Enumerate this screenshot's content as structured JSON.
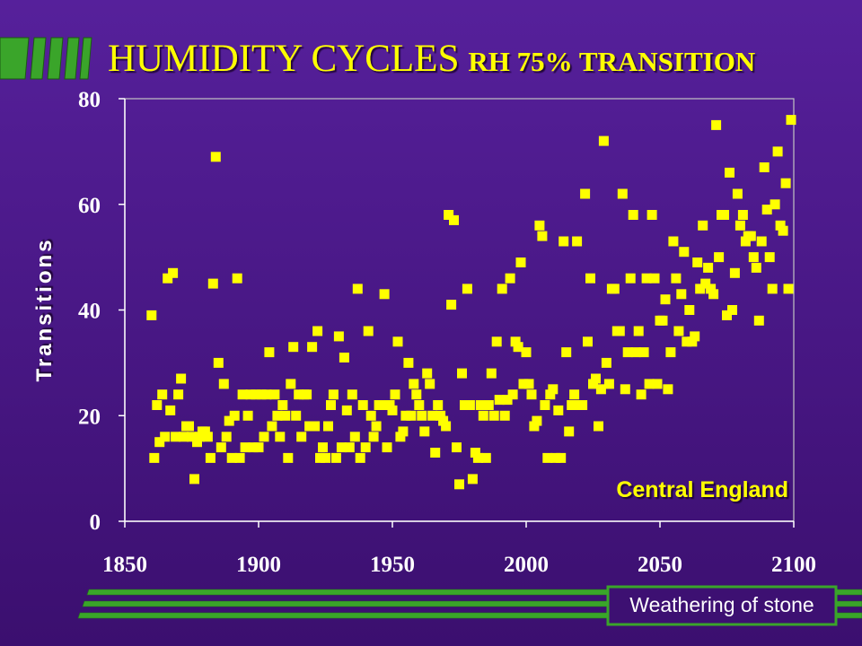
{
  "colors": {
    "background_top": "#56209b",
    "background_bottom": "#3b0f6f",
    "title": "#ffff00",
    "point": "#ffff00",
    "axis_text": "#ffffff",
    "accent_green": "#3aa52a",
    "footer_box_fill": "#3d1072"
  },
  "footer": {
    "label": "Weathering of stone"
  },
  "chart_data": {
    "type": "scatter",
    "title": "HUMIDITY CYCLES",
    "subtitle": "RH 75% TRANSITION",
    "xlabel": "",
    "ylabel": "Transitions",
    "xlim": [
      1850,
      2100
    ],
    "ylim": [
      0,
      80
    ],
    "x_ticks": [
      1850,
      1900,
      1950,
      2000,
      2050,
      2100
    ],
    "y_ticks": [
      0,
      20,
      40,
      60,
      80
    ],
    "grid": false,
    "annotations": [
      {
        "text": "Central England",
        "placement": "bottom-right"
      }
    ],
    "series": [
      {
        "x": [
          1860,
          1861,
          1862,
          1863,
          1864,
          1865,
          1866,
          1867,
          1868,
          1869,
          1870,
          1871,
          1872,
          1873,
          1874,
          1875,
          1876,
          1877,
          1878,
          1879,
          1880,
          1881,
          1882,
          1883,
          1884,
          1885,
          1886,
          1887,
          1888,
          1889,
          1890,
          1891,
          1892,
          1893,
          1894,
          1895,
          1896,
          1897,
          1898,
          1899,
          1900,
          1901,
          1902,
          1903,
          1904,
          1905,
          1906,
          1907,
          1908,
          1909,
          1910,
          1911,
          1912,
          1913,
          1914,
          1915,
          1916,
          1917,
          1918,
          1919,
          1920,
          1921,
          1922,
          1923,
          1924,
          1925,
          1926,
          1927,
          1928,
          1929,
          1930,
          1931,
          1932,
          1933,
          1934,
          1935,
          1936,
          1937,
          1938,
          1939,
          1940,
          1941,
          1942,
          1943,
          1944,
          1945,
          1946,
          1947,
          1948,
          1949,
          1950,
          1951,
          1952,
          1953,
          1954,
          1955,
          1956,
          1957,
          1958,
          1959,
          1960,
          1961,
          1962,
          1963,
          1964,
          1965,
          1966,
          1967,
          1968,
          1969,
          1970,
          1971,
          1972,
          1973,
          1974,
          1975,
          1976,
          1977,
          1978,
          1979,
          1980,
          1981,
          1982,
          1983,
          1984,
          1985,
          1986,
          1987,
          1988,
          1989,
          1990,
          1991,
          1992,
          1993,
          1994,
          1995,
          1996,
          1997,
          1998,
          1999,
          2000,
          2001,
          2002,
          2003,
          2004,
          2005,
          2006,
          2007,
          2008,
          2009,
          2010,
          2011,
          2012,
          2013,
          2014,
          2015,
          2016,
          2017,
          2018,
          2019,
          2020,
          2021,
          2022,
          2023,
          2024,
          2025,
          2026,
          2027,
          2028,
          2029,
          2030,
          2031,
          2032,
          2033,
          2034,
          2035,
          2036,
          2037,
          2038,
          2039,
          2040,
          2041,
          2042,
          2043,
          2044,
          2045,
          2046,
          2047,
          2048,
          2049,
          2050,
          2051,
          2052,
          2053,
          2054,
          2055,
          2056,
          2057,
          2058,
          2059,
          2060,
          2061,
          2062,
          2063,
          2064,
          2065,
          2066,
          2067,
          2068,
          2069,
          2070,
          2071,
          2072,
          2073,
          2074,
          2075,
          2076,
          2077,
          2078,
          2079,
          2080,
          2081,
          2082,
          2083,
          2084,
          2085,
          2086,
          2087,
          2088,
          2089,
          2090,
          2091,
          2092,
          2093,
          2094,
          2095,
          2096,
          2097,
          2098,
          2099
        ],
        "y": [
          39,
          12,
          22,
          15,
          24,
          16,
          46,
          21,
          47,
          16,
          24,
          27,
          16,
          18,
          18,
          16,
          8,
          15,
          16,
          17,
          17,
          16,
          12,
          45,
          69,
          30,
          14,
          26,
          16,
          19,
          12,
          20,
          46,
          12,
          24,
          14,
          20,
          24,
          14,
          24,
          14,
          24,
          16,
          24,
          32,
          18,
          24,
          20,
          16,
          22,
          20,
          12,
          26,
          33,
          20,
          24,
          16,
          24,
          24,
          18,
          33,
          18,
          36,
          12,
          14,
          12,
          18,
          22,
          24,
          12,
          35,
          14,
          31,
          21,
          14,
          24,
          16,
          44,
          12,
          22,
          14,
          36,
          20,
          16,
          18,
          22,
          22,
          43,
          14,
          22,
          21,
          24,
          34,
          16,
          17,
          20,
          30,
          20,
          26,
          24,
          22,
          20,
          17,
          28,
          26,
          20,
          13,
          22,
          20,
          19,
          18,
          58,
          41,
          57,
          14,
          7,
          28,
          22,
          44,
          22,
          8,
          13,
          12,
          22,
          20,
          12,
          22,
          28,
          20,
          34,
          23,
          44,
          20,
          23,
          46,
          24,
          34,
          33,
          49,
          26,
          32,
          26,
          24,
          18,
          19,
          56,
          54,
          22,
          12,
          24,
          25,
          12,
          21,
          12,
          53,
          32,
          17,
          22,
          24,
          53,
          22,
          22,
          62,
          34,
          46,
          26,
          27,
          18,
          25,
          72,
          30,
          26,
          44,
          44,
          36,
          36,
          62,
          25,
          32,
          46,
          58,
          32,
          36,
          24,
          32,
          46,
          26,
          58,
          46,
          26,
          38,
          38,
          42,
          25,
          32,
          53,
          46,
          36,
          43,
          51,
          34,
          40,
          34,
          35,
          49,
          44,
          56,
          45,
          48,
          44,
          43,
          75,
          50,
          58,
          58,
          39,
          66,
          40,
          47,
          62,
          56,
          58,
          53,
          54,
          54,
          50,
          48,
          38,
          53,
          67,
          59,
          50,
          44,
          60,
          70,
          56,
          55,
          64,
          44,
          76
        ]
      }
    ]
  }
}
